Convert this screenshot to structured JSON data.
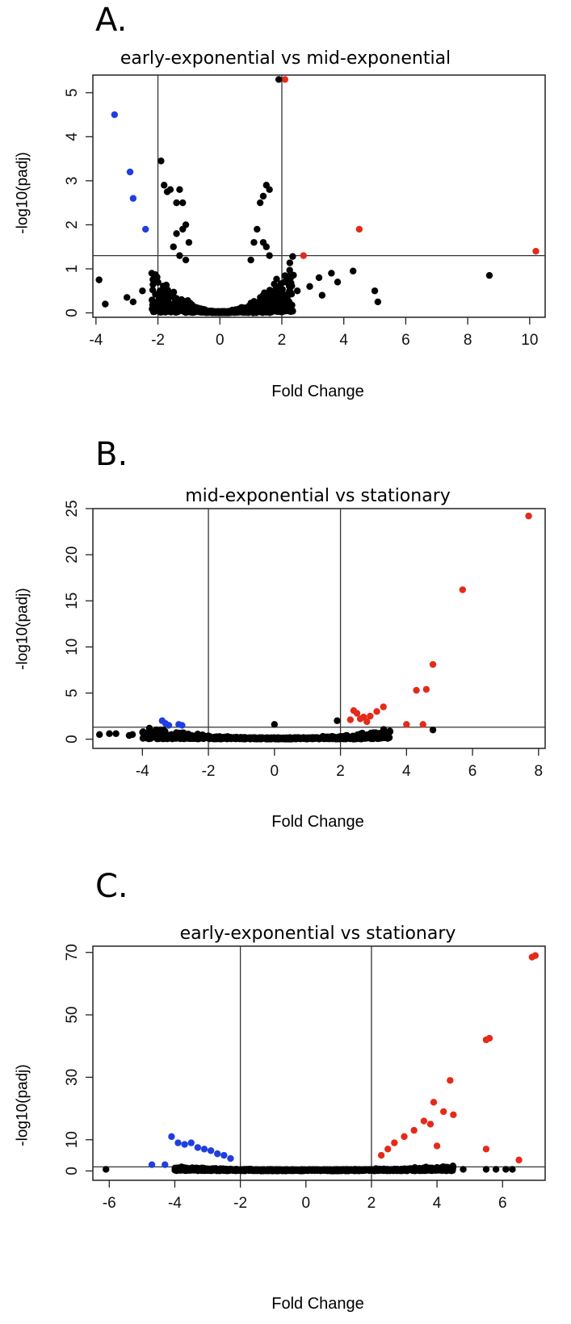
{
  "chart_data": [
    {
      "type": "scatter",
      "panel": "A.",
      "title": "early-exponential vs mid-exponential",
      "xlabel": "Fold Change",
      "ylabel": "-log10(padj)",
      "xlim": [
        -4.1,
        10.5
      ],
      "ylim": [
        -0.1,
        5.4
      ],
      "xticks": [
        -4,
        -2,
        0,
        2,
        4,
        6,
        8,
        10
      ],
      "yticks": [
        0,
        1,
        2,
        3,
        4,
        5
      ],
      "vlines": [
        -2,
        2
      ],
      "hline": 1.3,
      "colors": {
        "not_significant": "#000000",
        "down": "#1f3fe0",
        "up": "#e52a1a"
      },
      "series": [
        {
          "group": "down",
          "x": [
            -3.4,
            -2.9,
            -2.8,
            -2.4
          ],
          "y": [
            4.5,
            3.2,
            2.6,
            1.9
          ]
        },
        {
          "group": "up",
          "x": [
            2.1,
            4.5,
            10.2,
            2.7
          ],
          "y": [
            5.3,
            1.9,
            1.4,
            1.3
          ]
        },
        {
          "group": "not_significant",
          "x": [
            -3.9,
            -3.7,
            -1.9,
            -1.8,
            -1.7,
            -1.6,
            -1.4,
            -1.3,
            -1.2,
            -1.1,
            -1.4,
            -1.2,
            -1.0,
            -1.5,
            -1.3,
            -1.1,
            1.9,
            1.5,
            1.6,
            1.4,
            1.3,
            1.2,
            1.1,
            1.4,
            1.5,
            1.0,
            1.6,
            4.3,
            3.6,
            3.2,
            3.8,
            5.0,
            5.1,
            8.7,
            2.9,
            3.3,
            2.5,
            -2.2,
            -2.5,
            -3.0,
            -2.8
          ],
          "y": [
            0.75,
            0.2,
            3.45,
            2.9,
            2.75,
            2.8,
            2.5,
            2.8,
            2.5,
            2.0,
            1.8,
            1.9,
            1.6,
            1.5,
            1.3,
            1.2,
            5.3,
            2.9,
            2.8,
            2.65,
            2.5,
            1.9,
            1.6,
            1.6,
            1.5,
            1.2,
            1.3,
            0.95,
            0.9,
            0.8,
            0.7,
            0.5,
            0.25,
            0.85,
            0.6,
            0.4,
            0.5,
            0.9,
            0.5,
            0.35,
            0.25
          ],
          "cloud": {
            "x_range": [
              -2.2,
              2.4
            ],
            "approx_points": 700
          }
        }
      ]
    },
    {
      "type": "scatter",
      "panel": "B.",
      "title": "mid-exponential vs stationary",
      "xlabel": "Fold Change",
      "ylabel": "-log10(padj)",
      "xlim": [
        -5.5,
        8.2
      ],
      "ylim": [
        -1,
        25
      ],
      "xticks": [
        -4,
        -2,
        0,
        2,
        4,
        6,
        8
      ],
      "yticks": [
        0,
        5,
        10,
        15,
        20,
        25
      ],
      "vlines": [
        -2,
        2
      ],
      "hline": 1.3,
      "colors": {
        "not_significant": "#000000",
        "down": "#1f3fe0",
        "up": "#e52a1a"
      },
      "series": [
        {
          "group": "down",
          "x": [
            -3.4,
            -3.3,
            -3.2,
            -2.9,
            -2.8
          ],
          "y": [
            2.0,
            1.7,
            1.5,
            1.6,
            1.5
          ]
        },
        {
          "group": "up",
          "x": [
            7.7,
            5.7,
            4.8,
            4.6,
            4.3,
            4.0,
            4.5,
            2.3,
            2.5,
            2.7,
            2.9,
            3.1,
            3.3,
            2.4,
            2.6,
            2.8
          ],
          "y": [
            24.2,
            16.2,
            8.1,
            5.4,
            5.3,
            1.6,
            1.6,
            2.1,
            2.8,
            2.4,
            2.5,
            3.0,
            3.5,
            3.1,
            2.2,
            1.9
          ]
        },
        {
          "group": "not_significant",
          "x": [
            -5.3,
            -5.0,
            -4.8,
            -4.4,
            -4.3,
            0.0,
            1.9,
            4.8,
            3.5,
            3.0
          ],
          "y": [
            0.5,
            0.6,
            0.6,
            0.4,
            0.5,
            1.6,
            2.0,
            1.0,
            0.8,
            0.7
          ],
          "cloud": {
            "x_range": [
              -4.0,
              3.5
            ],
            "approx_points": 900
          }
        }
      ]
    },
    {
      "type": "scatter",
      "panel": "C.",
      "title": "early-exponential vs stationary",
      "xlabel": "Fold Change",
      "ylabel": "-log10(padj)",
      "xlim": [
        -6.5,
        7.3
      ],
      "ylim": [
        -3,
        72
      ],
      "xticks": [
        -6,
        -4,
        -2,
        0,
        2,
        4,
        6
      ],
      "yticks": [
        0,
        10,
        30,
        50,
        70
      ],
      "vlines": [
        -2,
        2
      ],
      "hline": 1.3,
      "colors": {
        "not_significant": "#000000",
        "down": "#1f3fe0",
        "up": "#e52a1a"
      },
      "series": [
        {
          "group": "down",
          "x": [
            -4.1,
            -3.9,
            -3.7,
            -3.5,
            -3.3,
            -3.1,
            -2.9,
            -2.7,
            -2.5,
            -2.3,
            -4.7,
            -4.3
          ],
          "y": [
            11,
            9,
            8.5,
            9,
            7.5,
            7,
            6.5,
            5.5,
            5,
            4,
            2,
            2
          ]
        },
        {
          "group": "up",
          "x": [
            7.0,
            6.9,
            5.5,
            5.6,
            4.4,
            3.9,
            4.2,
            4.5,
            3.6,
            3.3,
            3.0,
            2.7,
            2.5,
            2.3,
            5.5,
            6.5,
            4.0,
            3.8
          ],
          "y": [
            69,
            68.5,
            42,
            42.5,
            29,
            22,
            19,
            18,
            16,
            13,
            11,
            9,
            7,
            5,
            7,
            3.5,
            8,
            15
          ]
        },
        {
          "group": "not_significant",
          "x": [
            -6.1,
            4.8,
            5.5,
            5.8,
            6.1,
            6.3,
            4.3,
            3.6
          ],
          "y": [
            0.5,
            0.5,
            0.5,
            0.5,
            0.5,
            0.5,
            1.0,
            1.0
          ],
          "cloud": {
            "x_range": [
              -4.0,
              4.5
            ],
            "approx_points": 1100
          }
        }
      ]
    }
  ]
}
